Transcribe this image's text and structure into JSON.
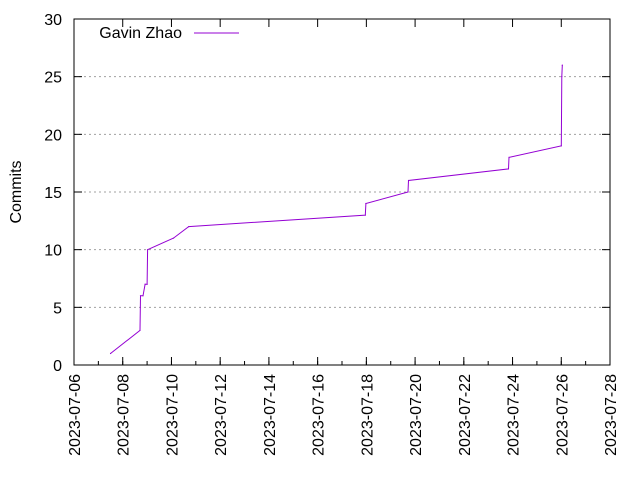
{
  "chart_data": {
    "type": "line",
    "title": "",
    "xlabel": "",
    "ylabel": "Commits",
    "ylim": [
      0,
      30
    ],
    "xlim": [
      "2023-07-06",
      "2023-07-28"
    ],
    "y_ticks": [
      "0",
      "5",
      "10",
      "15",
      "20",
      "25",
      "30"
    ],
    "x_ticks": [
      "2023-07-06",
      "2023-07-08",
      "2023-07-10",
      "2023-07-12",
      "2023-07-14",
      "2023-07-16",
      "2023-07-18",
      "2023-07-20",
      "2023-07-22",
      "2023-07-24",
      "2023-07-26",
      "2023-07-28"
    ],
    "grid": true,
    "legend_position": "top-left",
    "series": [
      {
        "name": "Gavin Zhao",
        "color": "#9400d3",
        "points": [
          {
            "x": "2023-07-07 12:00",
            "y": 1
          },
          {
            "x": "2023-07-08 17:00",
            "y": 3
          },
          {
            "x": "2023-07-08 17:30",
            "y": 6
          },
          {
            "x": "2023-07-08 20:00",
            "y": 6
          },
          {
            "x": "2023-07-08 22:00",
            "y": 7
          },
          {
            "x": "2023-07-09 00:00",
            "y": 7
          },
          {
            "x": "2023-07-09 00:30",
            "y": 10
          },
          {
            "x": "2023-07-10 02:00",
            "y": 11
          },
          {
            "x": "2023-07-10 17:00",
            "y": 12
          },
          {
            "x": "2023-07-17 23:00",
            "y": 13
          },
          {
            "x": "2023-07-17 23:30",
            "y": 14
          },
          {
            "x": "2023-07-19 17:00",
            "y": 15
          },
          {
            "x": "2023-07-19 17:30",
            "y": 16
          },
          {
            "x": "2023-07-23 20:00",
            "y": 17
          },
          {
            "x": "2023-07-23 20:30",
            "y": 18
          },
          {
            "x": "2023-07-26 00:00",
            "y": 19
          },
          {
            "x": "2023-07-26 00:30",
            "y": 25
          },
          {
            "x": "2023-07-26 01:00",
            "y": 26
          }
        ]
      }
    ]
  }
}
